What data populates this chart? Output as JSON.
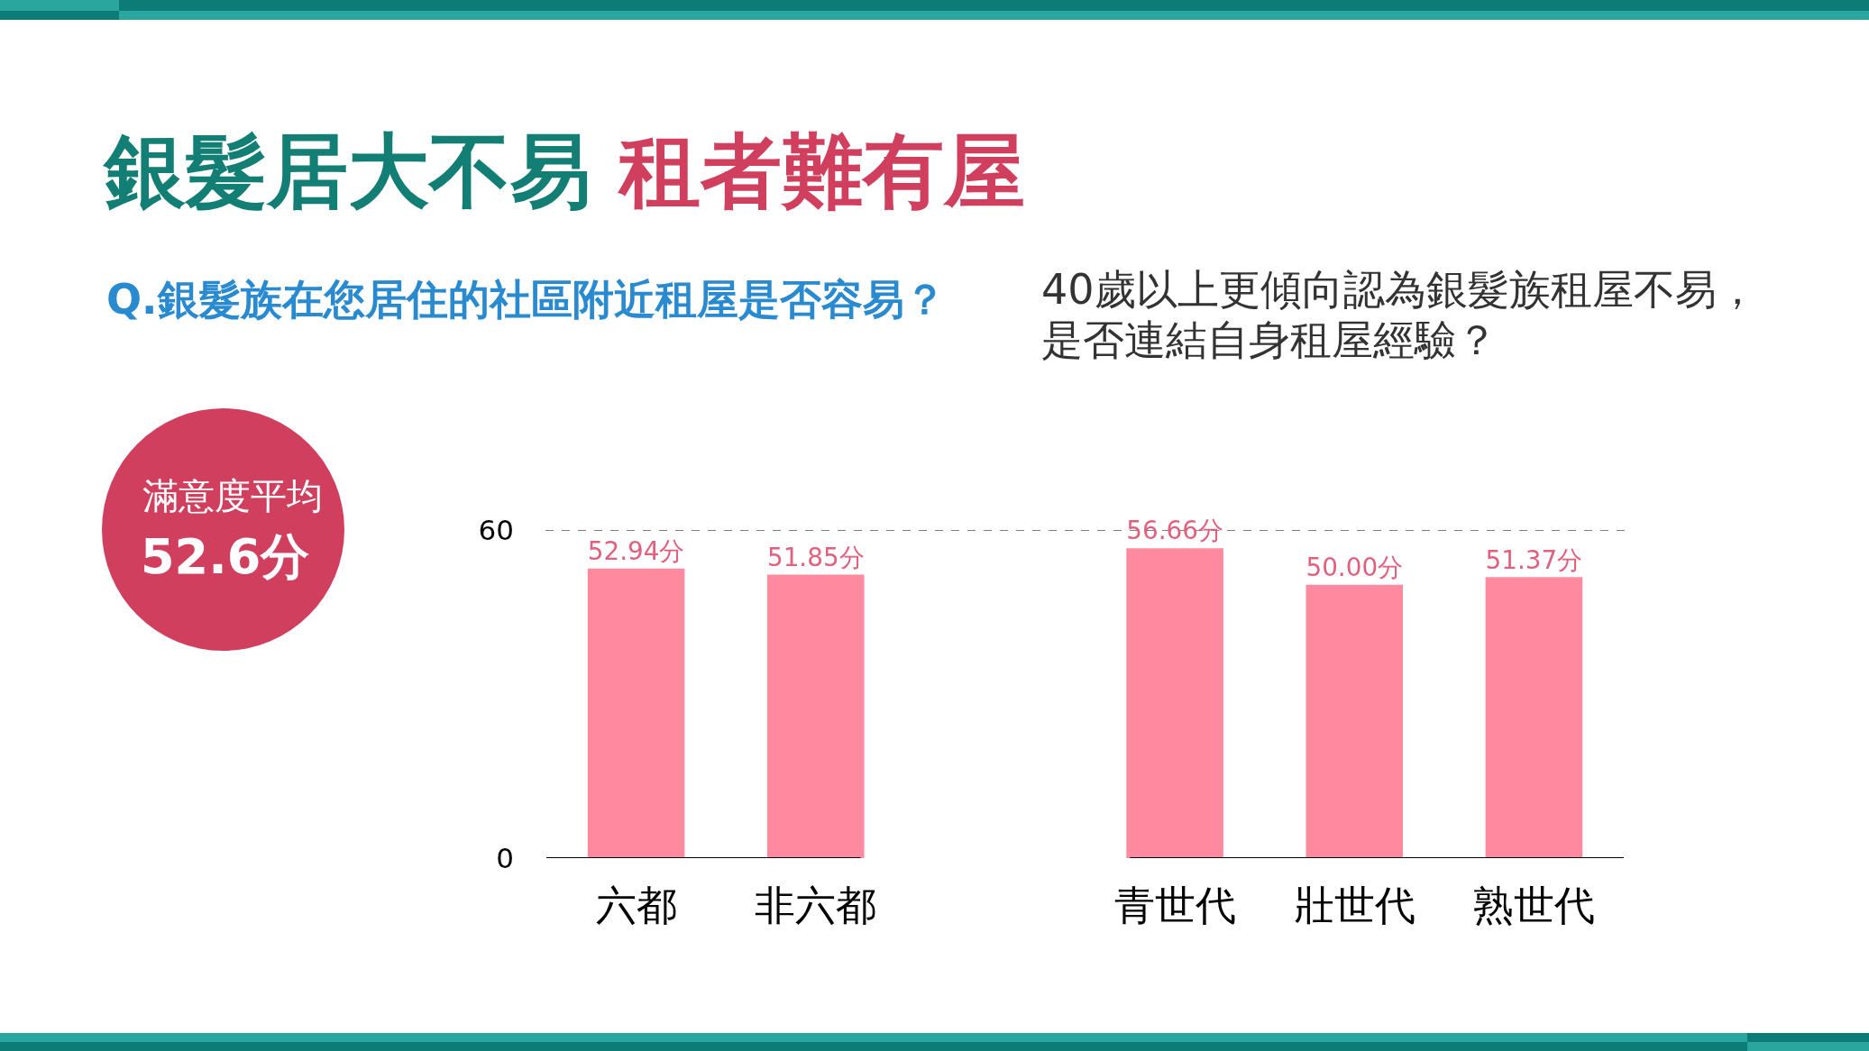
{
  "chart_data": {
    "type": "bar",
    "title": "銀髮居大不易 租者難有屋",
    "subtitle": "Q.銀髮族在您居住的社區附近租屋是否容易？",
    "annotations": [
      "40歲以上更傾向認為銀髮族租屋不易，",
      "是否連結自身租屋經驗？",
      "滿意度平均",
      "52.6分"
    ],
    "categories": [
      "六都",
      "非六都",
      null,
      "青世代",
      "壯世代",
      "熟世代"
    ],
    "series": [
      {
        "color": "#ff8aa0",
        "values": [
          52.94,
          51.85,
          null,
          56.66,
          50.0,
          51.37
        ],
        "value_labels": [
          "52.94分",
          "51.85分",
          null,
          "56.66分",
          "50.00分",
          "51.37分"
        ]
      }
    ],
    "ylim": [
      0,
      60
    ],
    "yticks": [
      0,
      60
    ],
    "ref_lines": [
      {
        "axis": "y",
        "value": 60,
        "color": "#555555",
        "line_style": "dashed"
      }
    ]
  }
}
